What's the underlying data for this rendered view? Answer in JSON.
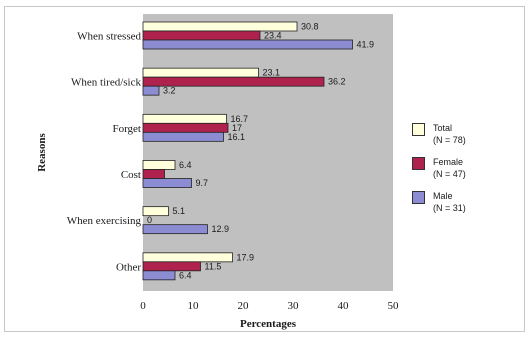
{
  "chart_data": {
    "type": "bar",
    "orientation": "horizontal",
    "categories": [
      "When stressed",
      "When tired/sick",
      "Forget",
      "Cost",
      "When exercising",
      "Other"
    ],
    "series": [
      {
        "name": "Total",
        "n_label": "(N = 78)",
        "color": "#ffffdc",
        "values": [
          30.8,
          23.1,
          16.7,
          6.4,
          5.1,
          17.9
        ]
      },
      {
        "name": "Female",
        "n_label": "(N = 47)",
        "color": "#b0224e",
        "values": [
          23.4,
          36.2,
          17,
          4.3,
          0,
          11.5
        ]
      },
      {
        "name": "Male",
        "n_label": "(N = 31)",
        "color": "#8c8cd2",
        "values": [
          41.9,
          3.2,
          16.1,
          9.7,
          12.9,
          6.4
        ]
      }
    ],
    "data_labels": [
      [
        "30.8",
        "23.4",
        "41.9"
      ],
      [
        "23.1",
        "36.2",
        "3.2"
      ],
      [
        "16.7",
        "17",
        "16.1"
      ],
      [
        "6.4",
        "",
        "9.7"
      ],
      [
        "5.1",
        "0",
        "12.9"
      ],
      [
        "17.9",
        "11.5",
        "6.4"
      ]
    ],
    "xlabel": "Percentages",
    "ylabel": "Reasons",
    "xlim": [
      0,
      50
    ],
    "xticks": [
      0,
      10,
      20,
      30,
      40,
      50
    ],
    "plot_background": "#c0c0c0",
    "grid": false,
    "legend_position": "right"
  }
}
